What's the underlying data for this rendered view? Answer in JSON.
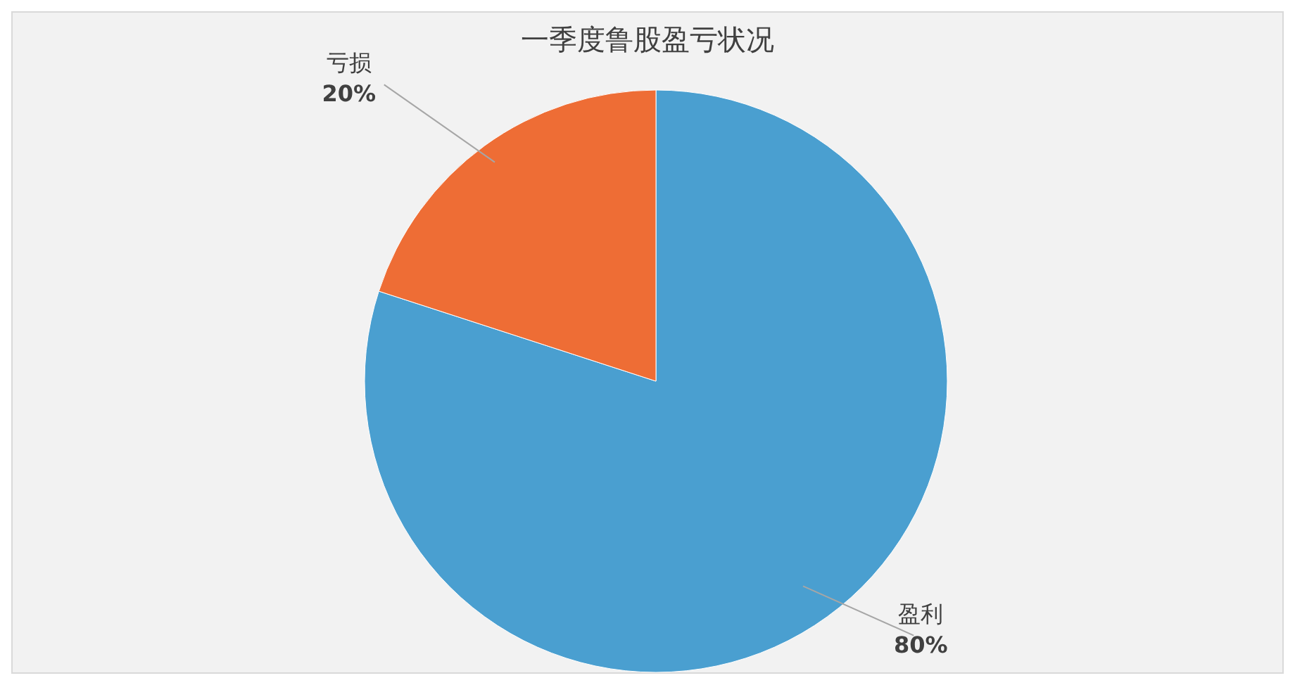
{
  "chart_data": {
    "type": "pie",
    "title": "一季度鲁股盈亏状况",
    "categories": [
      "盈利",
      "亏损"
    ],
    "values": [
      80,
      20
    ],
    "value_labels": [
      "80%",
      "20%"
    ],
    "colors": [
      "#4a9fd0",
      "#ee6d35"
    ],
    "legend": false
  }
}
